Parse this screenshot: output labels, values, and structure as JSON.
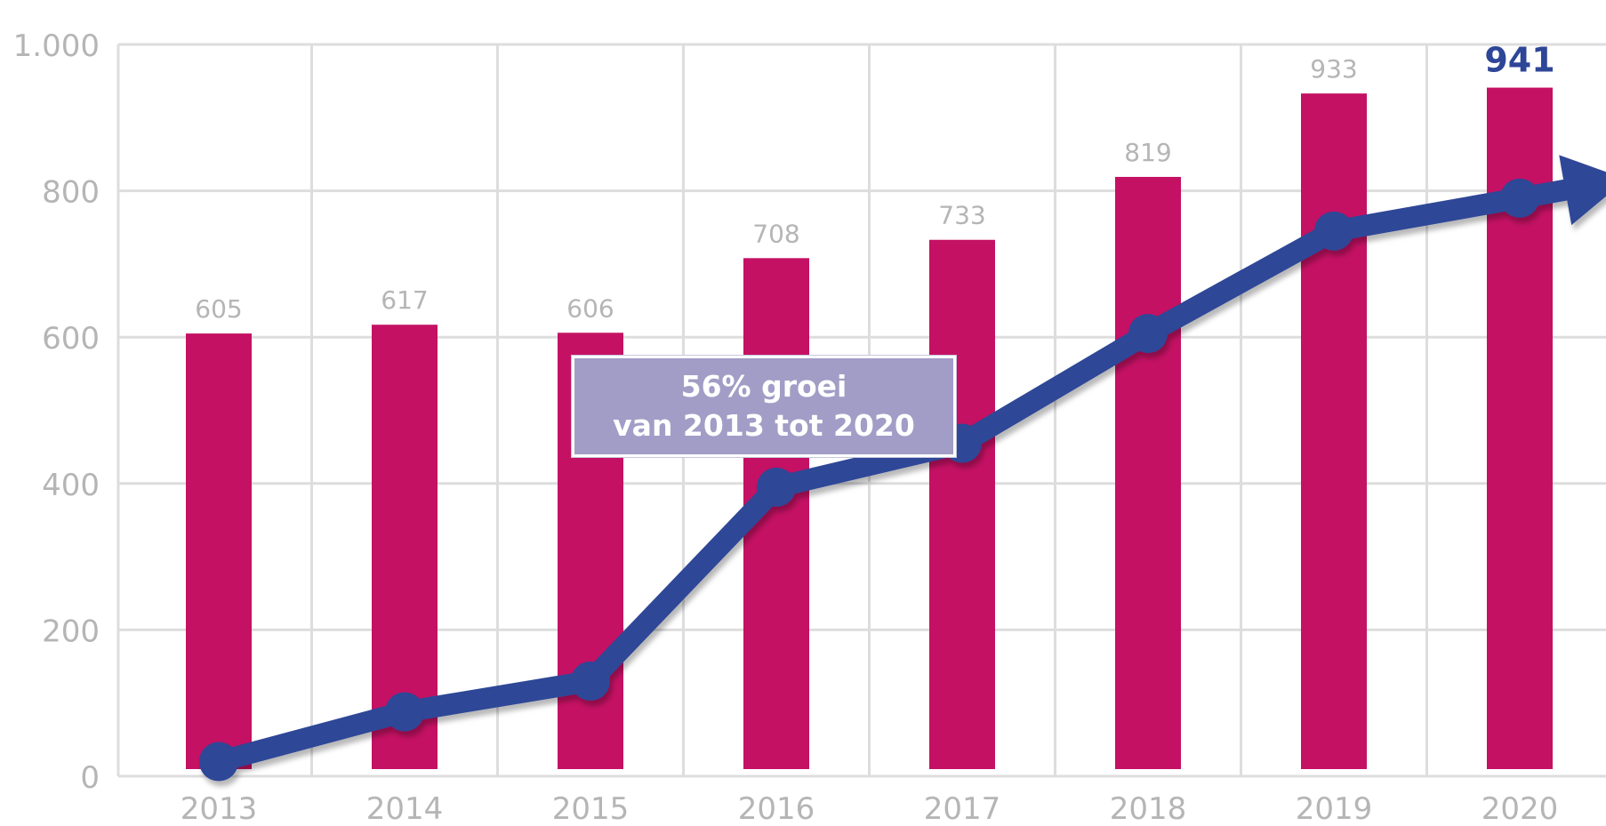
{
  "chart_data": {
    "type": "bar",
    "categories": [
      "2013",
      "2014",
      "2015",
      "2016",
      "2017",
      "2018",
      "2019",
      "2020"
    ],
    "values": [
      605,
      617,
      606,
      708,
      733,
      819,
      933,
      941
    ],
    "value_labels": [
      "605",
      "617",
      "606",
      "708",
      "733",
      "819",
      "933",
      "941"
    ],
    "highlight_index": 7,
    "ylim": [
      0,
      1000
    ],
    "yticks": [
      {
        "value": 0,
        "label": "0"
      },
      {
        "value": 200,
        "label": "200"
      },
      {
        "value": 400,
        "label": "400"
      },
      {
        "value": 600,
        "label": "600"
      },
      {
        "value": 800,
        "label": "800"
      },
      {
        "value": 1000,
        "label": "1.000"
      }
    ],
    "grid": true,
    "trend_arrow_values": [
      20,
      88,
      130,
      395,
      455,
      605,
      745,
      790
    ],
    "annotation": {
      "line1": "56% groei",
      "line2": "van 2013 tot 2020"
    },
    "colors": {
      "bar": "#c41163",
      "trend": "#2e4697",
      "highlight_label": "#2e4697",
      "label": "#b5b5b5",
      "grid": "#dddddd",
      "annotation_bg": "#a19dc6"
    }
  }
}
